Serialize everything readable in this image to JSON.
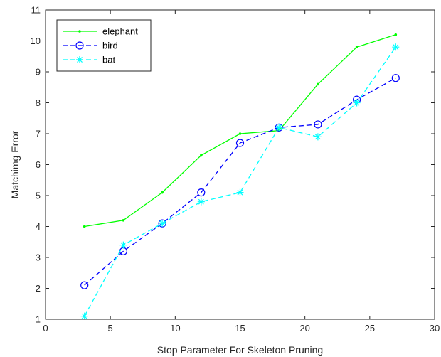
{
  "chart_data": {
    "type": "line",
    "title": "",
    "xlabel": "Stop Parameter For Skeleton Pruning",
    "ylabel": "Matchimg Error",
    "xlim": [
      0,
      30
    ],
    "ylim": [
      1,
      11
    ],
    "xticks": [
      0,
      5,
      10,
      15,
      20,
      25,
      30
    ],
    "yticks": [
      1,
      2,
      3,
      4,
      5,
      6,
      7,
      8,
      9,
      10,
      11
    ],
    "xtick_labels": [
      "0",
      "5",
      "10",
      "15",
      "20",
      "25",
      "30"
    ],
    "ytick_labels": [
      "1",
      "2",
      "3",
      "4",
      "5",
      "6",
      "7",
      "8",
      "9",
      "10",
      "11"
    ],
    "grid": false,
    "legend_position": "top-left",
    "x": [
      3,
      6,
      9,
      12,
      15,
      18,
      21,
      24,
      27
    ],
    "series": [
      {
        "name": "elephant",
        "values": [
          4.0,
          4.2,
          5.1,
          6.3,
          7.0,
          7.1,
          8.6,
          9.8,
          10.2
        ],
        "color": "#00ff00",
        "line_style": "solid",
        "marker": "point"
      },
      {
        "name": "bird",
        "values": [
          2.1,
          3.2,
          4.1,
          5.1,
          6.7,
          7.2,
          7.3,
          8.1,
          8.8
        ],
        "color": "#0000ff",
        "line_style": "dashed",
        "marker": "circle"
      },
      {
        "name": "bat",
        "values": [
          1.1,
          3.4,
          4.1,
          4.8,
          5.1,
          7.2,
          6.9,
          8.0,
          9.8
        ],
        "color": "#00ffff",
        "line_style": "dashed",
        "marker": "asterisk"
      }
    ]
  }
}
